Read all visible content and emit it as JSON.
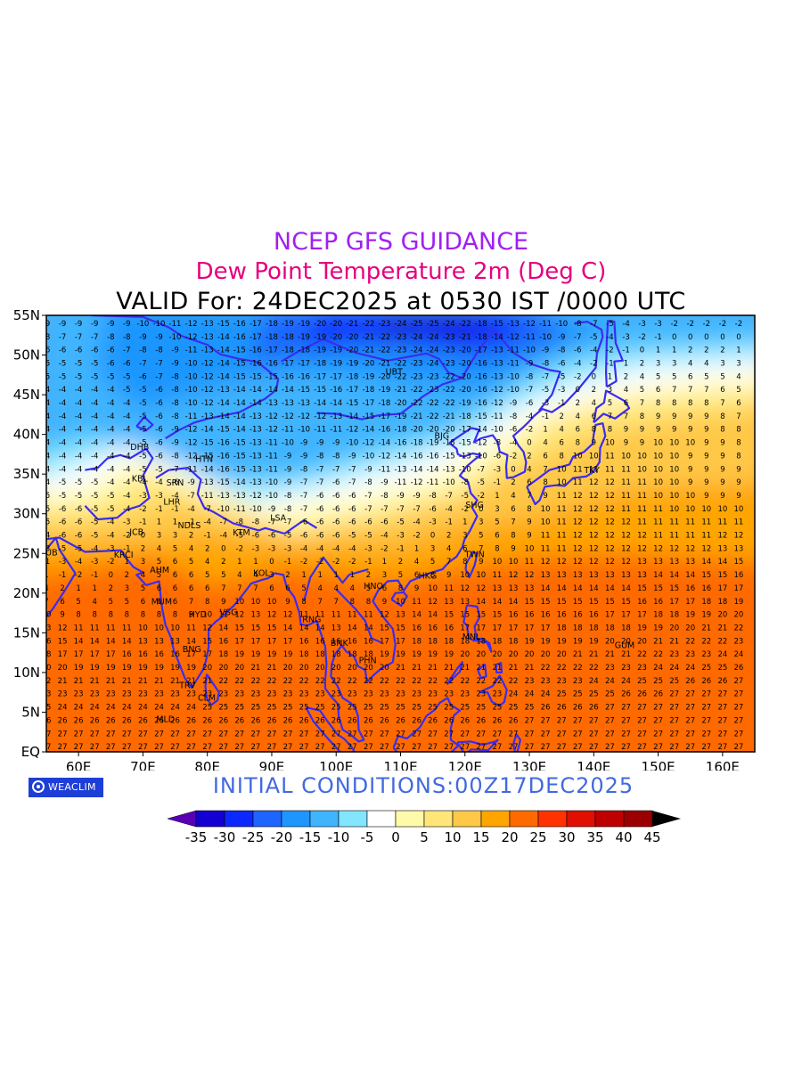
{
  "title": "NCEP GFS GUIDANCE",
  "subtitle": "Dew Point Temperature 2m (Deg C)",
  "valid_line": "VALID For: 24DEC2025 at 0530 IST /0000 UTC",
  "initial_conditions": "INITIAL  CONDITIONS:00Z17DEC2025",
  "brand": {
    "name": "WEACLIM",
    "icon": "weaclim-logo-icon"
  },
  "map": {
    "lon_range": [
      55,
      165
    ],
    "lat_range": [
      0,
      55
    ],
    "lon_ticks": [
      60,
      70,
      80,
      90,
      100,
      110,
      120,
      130,
      140,
      150,
      160
    ],
    "lon_labels": [
      "60E",
      "70E",
      "80E",
      "90E",
      "100E",
      "110E",
      "120E",
      "130E",
      "140E",
      "150E",
      "160E"
    ],
    "lat_ticks": [
      0,
      5,
      10,
      15,
      20,
      25,
      30,
      35,
      40,
      45,
      50,
      55
    ],
    "lat_labels": [
      "EQ",
      "5N",
      "10N",
      "15N",
      "20N",
      "25N",
      "30N",
      "35N",
      "40N",
      "45N",
      "50N",
      "55N"
    ],
    "stations": [
      {
        "code": "UBT",
        "lon": 109,
        "lat": 48
      },
      {
        "code": "DHB",
        "lon": 69.5,
        "lat": 38.5
      },
      {
        "code": "HTN",
        "lon": 79.5,
        "lat": 37
      },
      {
        "code": "KBL",
        "lon": 69.5,
        "lat": 34.5
      },
      {
        "code": "SRN",
        "lon": 75,
        "lat": 34
      },
      {
        "code": "LHR",
        "lon": 74.5,
        "lat": 31.6
      },
      {
        "code": "LSA",
        "lon": 91,
        "lat": 29.6
      },
      {
        "code": "SHG",
        "lon": 121.5,
        "lat": 31.2
      },
      {
        "code": "TKY",
        "lon": 139.7,
        "lat": 35.6
      },
      {
        "code": "BJG",
        "lon": 116.4,
        "lat": 39.9
      },
      {
        "code": "NDLS",
        "lon": 77.2,
        "lat": 28.6
      },
      {
        "code": "JCB",
        "lon": 69,
        "lat": 27.8
      },
      {
        "code": "KTM",
        "lon": 85.3,
        "lat": 27.7
      },
      {
        "code": "DUB",
        "lon": 55.3,
        "lat": 25.2
      },
      {
        "code": "KRCI",
        "lon": 67,
        "lat": 24.9
      },
      {
        "code": "AHM",
        "lon": 72.6,
        "lat": 23
      },
      {
        "code": "KOL",
        "lon": 88.4,
        "lat": 22.6
      },
      {
        "code": "TWN",
        "lon": 121.5,
        "lat": 25
      },
      {
        "code": "HKG",
        "lon": 114.2,
        "lat": 22.3
      },
      {
        "code": "HNO",
        "lon": 105.8,
        "lat": 21
      },
      {
        "code": "MUM",
        "lon": 72.9,
        "lat": 19
      },
      {
        "code": "HYD",
        "lon": 78.5,
        "lat": 17.4
      },
      {
        "code": "VSG",
        "lon": 83.3,
        "lat": 17.7
      },
      {
        "code": "RNG",
        "lon": 96.2,
        "lat": 16.8
      },
      {
        "code": "BNK",
        "lon": 100.5,
        "lat": 13.8
      },
      {
        "code": "MNL",
        "lon": 121,
        "lat": 14.6
      },
      {
        "code": "GUM",
        "lon": 144.8,
        "lat": 13.5
      },
      {
        "code": "BNG",
        "lon": 77.6,
        "lat": 13
      },
      {
        "code": "PHN",
        "lon": 104.9,
        "lat": 11.6
      },
      {
        "code": "TRV",
        "lon": 76.9,
        "lat": 8.5
      },
      {
        "code": "CLM",
        "lon": 79.9,
        "lat": 6.9
      },
      {
        "code": "MLD",
        "lon": 73.5,
        "lat": 4.2
      }
    ]
  },
  "colorbar": {
    "labels": [
      "-35",
      "-30",
      "-25",
      "-20",
      "-15",
      "-10",
      "-5",
      "0",
      "5",
      "10",
      "15",
      "20",
      "25",
      "30",
      "35",
      "40",
      "45"
    ],
    "colors": [
      "#1400d2",
      "#0a28ff",
      "#1e64ff",
      "#1e96ff",
      "#41b4ff",
      "#82e6ff",
      "#ffffff",
      "#fffaaa",
      "#ffe678",
      "#ffc846",
      "#ffa500",
      "#ff6a00",
      "#ff3200",
      "#e10f00",
      "#be0000",
      "#9b0000"
    ],
    "under_color": "#5a00b4",
    "over_color": "#000000"
  }
}
